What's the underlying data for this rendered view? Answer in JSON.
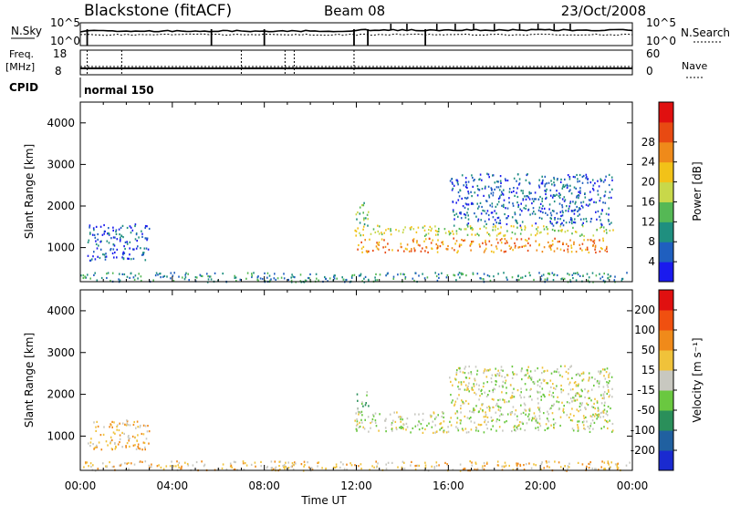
{
  "header": {
    "title": "Blackstone (fitACF)",
    "beam": "Beam 08",
    "date": "23/Oct/2008"
  },
  "top_panels": {
    "nsky_label": "N.Sky",
    "nsky_ticks": [
      "10^5",
      "10^0"
    ],
    "nsearch_label": "N.Search",
    "nsearch_ticks": [
      "10^5",
      "10^0"
    ],
    "freq_label": "Freq.",
    "freq_unit": "[MHz]",
    "freq_ticks": [
      "18",
      "8"
    ],
    "nave_label": "Nave",
    "nave_ticks": [
      "60",
      "0"
    ],
    "cpid_label": "CPID",
    "cpid_value": "normal 150"
  },
  "chart_data": [
    {
      "type": "heatmap",
      "quantity": "power",
      "ylabel": "Slant Range [km]",
      "xlabel": "Time UT",
      "x_range_hours": [
        0,
        24
      ],
      "ylim": [
        180,
        4500
      ],
      "y_ticks": [
        "1000",
        "2000",
        "3000",
        "4000"
      ],
      "x_ticks": [
        "00:00",
        "04:00",
        "08:00",
        "12:00",
        "16:00",
        "20:00",
        "00:00"
      ],
      "colorbar": {
        "label": "Power [dB]",
        "ticks": [
          "4",
          "8",
          "12",
          "16",
          "20",
          "24",
          "28"
        ],
        "colors": [
          "#1a1aee",
          "#1f5fbf",
          "#1f8f7f",
          "#55b855",
          "#c8d84a",
          "#f2c218",
          "#ef8a1a",
          "#e84a12",
          "#e01010"
        ]
      },
      "regions": [
        {
          "t0": 0.3,
          "t1": 3.0,
          "r0": 700,
          "r1": 1600,
          "level": 1
        },
        {
          "t0": 0.0,
          "t1": 23.9,
          "r0": 190,
          "r1": 420,
          "level": 2
        },
        {
          "t0": 11.9,
          "t1": 23.2,
          "r0": 1300,
          "r1": 1550,
          "level": 4
        },
        {
          "t0": 12.0,
          "t1": 22.9,
          "r0": 900,
          "r1": 1250,
          "level": 6
        },
        {
          "t0": 11.9,
          "t1": 12.5,
          "r0": 1550,
          "r1": 2100,
          "level": 3
        },
        {
          "t0": 16.0,
          "t1": 23.1,
          "r0": 1550,
          "r1": 2800,
          "level": 1
        }
      ]
    },
    {
      "type": "heatmap",
      "quantity": "velocity",
      "ylabel": "Slant Range [km]",
      "xlabel": "Time UT",
      "x_range_hours": [
        0,
        24
      ],
      "ylim": [
        180,
        4500
      ],
      "y_ticks": [
        "1000",
        "2000",
        "3000",
        "4000"
      ],
      "x_ticks": [
        "00:00",
        "04:00",
        "08:00",
        "12:00",
        "16:00",
        "20:00",
        "00:00"
      ],
      "colorbar": {
        "label": "Velocity [m s⁻¹]",
        "ticks": [
          "200",
          "100",
          "50",
          "15",
          "-15",
          "-50",
          "-100",
          "-200"
        ],
        "colors": [
          "#1a2ad0",
          "#2060a0",
          "#2a8f5a",
          "#6ac840",
          "#c8c8c0",
          "#f0c23a",
          "#f08a1a",
          "#f05010",
          "#e01010"
        ]
      },
      "regions": [
        {
          "t0": 0.3,
          "t1": 3.0,
          "r0": 700,
          "r1": 1400,
          "level": 5
        },
        {
          "t0": 0.0,
          "t1": 23.9,
          "r0": 190,
          "r1": 420,
          "level": 5
        },
        {
          "t0": 11.9,
          "t1": 23.2,
          "r0": 1100,
          "r1": 1600,
          "level": 4
        },
        {
          "t0": 12.0,
          "t1": 12.5,
          "r0": 1600,
          "r1": 2100,
          "level": 3
        },
        {
          "t0": 16.0,
          "t1": 23.1,
          "r0": 1600,
          "r1": 2700,
          "level": 4
        }
      ]
    }
  ]
}
